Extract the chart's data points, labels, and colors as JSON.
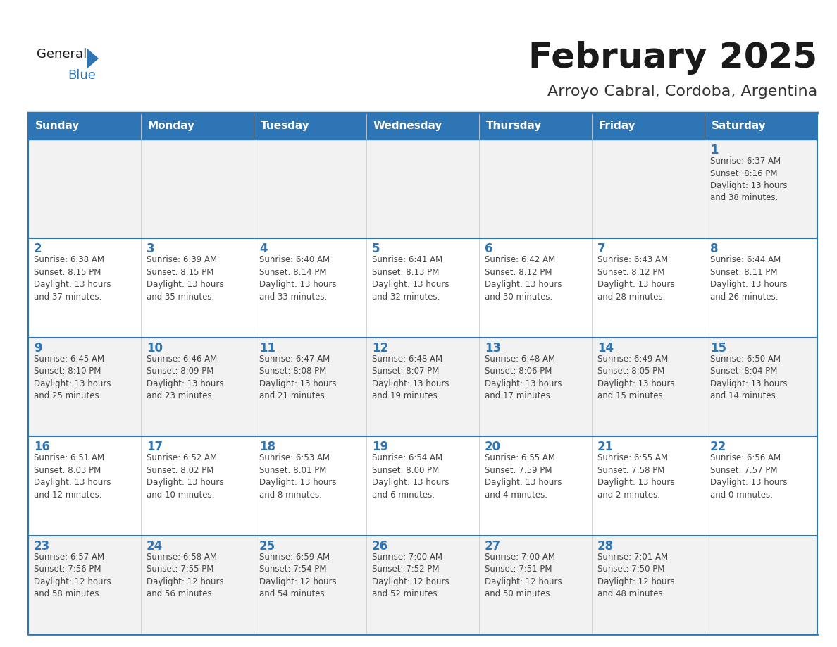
{
  "title": "February 2025",
  "subtitle": "Arroyo Cabral, Cordoba, Argentina",
  "header_bg": "#2E75B6",
  "header_text_color": "#FFFFFF",
  "cell_bg_white": "#FFFFFF",
  "cell_bg_gray": "#F2F2F2",
  "border_color_blue": "#2E75B6",
  "border_color_gray": "#CCCCCC",
  "text_color": "#444444",
  "day_number_color": "#2E75B6",
  "days_of_week": [
    "Sunday",
    "Monday",
    "Tuesday",
    "Wednesday",
    "Thursday",
    "Friday",
    "Saturday"
  ],
  "weeks": [
    [
      {
        "day": "",
        "info": ""
      },
      {
        "day": "",
        "info": ""
      },
      {
        "day": "",
        "info": ""
      },
      {
        "day": "",
        "info": ""
      },
      {
        "day": "",
        "info": ""
      },
      {
        "day": "",
        "info": ""
      },
      {
        "day": "1",
        "info": "Sunrise: 6:37 AM\nSunset: 8:16 PM\nDaylight: 13 hours\nand 38 minutes."
      }
    ],
    [
      {
        "day": "2",
        "info": "Sunrise: 6:38 AM\nSunset: 8:15 PM\nDaylight: 13 hours\nand 37 minutes."
      },
      {
        "day": "3",
        "info": "Sunrise: 6:39 AM\nSunset: 8:15 PM\nDaylight: 13 hours\nand 35 minutes."
      },
      {
        "day": "4",
        "info": "Sunrise: 6:40 AM\nSunset: 8:14 PM\nDaylight: 13 hours\nand 33 minutes."
      },
      {
        "day": "5",
        "info": "Sunrise: 6:41 AM\nSunset: 8:13 PM\nDaylight: 13 hours\nand 32 minutes."
      },
      {
        "day": "6",
        "info": "Sunrise: 6:42 AM\nSunset: 8:12 PM\nDaylight: 13 hours\nand 30 minutes."
      },
      {
        "day": "7",
        "info": "Sunrise: 6:43 AM\nSunset: 8:12 PM\nDaylight: 13 hours\nand 28 minutes."
      },
      {
        "day": "8",
        "info": "Sunrise: 6:44 AM\nSunset: 8:11 PM\nDaylight: 13 hours\nand 26 minutes."
      }
    ],
    [
      {
        "day": "9",
        "info": "Sunrise: 6:45 AM\nSunset: 8:10 PM\nDaylight: 13 hours\nand 25 minutes."
      },
      {
        "day": "10",
        "info": "Sunrise: 6:46 AM\nSunset: 8:09 PM\nDaylight: 13 hours\nand 23 minutes."
      },
      {
        "day": "11",
        "info": "Sunrise: 6:47 AM\nSunset: 8:08 PM\nDaylight: 13 hours\nand 21 minutes."
      },
      {
        "day": "12",
        "info": "Sunrise: 6:48 AM\nSunset: 8:07 PM\nDaylight: 13 hours\nand 19 minutes."
      },
      {
        "day": "13",
        "info": "Sunrise: 6:48 AM\nSunset: 8:06 PM\nDaylight: 13 hours\nand 17 minutes."
      },
      {
        "day": "14",
        "info": "Sunrise: 6:49 AM\nSunset: 8:05 PM\nDaylight: 13 hours\nand 15 minutes."
      },
      {
        "day": "15",
        "info": "Sunrise: 6:50 AM\nSunset: 8:04 PM\nDaylight: 13 hours\nand 14 minutes."
      }
    ],
    [
      {
        "day": "16",
        "info": "Sunrise: 6:51 AM\nSunset: 8:03 PM\nDaylight: 13 hours\nand 12 minutes."
      },
      {
        "day": "17",
        "info": "Sunrise: 6:52 AM\nSunset: 8:02 PM\nDaylight: 13 hours\nand 10 minutes."
      },
      {
        "day": "18",
        "info": "Sunrise: 6:53 AM\nSunset: 8:01 PM\nDaylight: 13 hours\nand 8 minutes."
      },
      {
        "day": "19",
        "info": "Sunrise: 6:54 AM\nSunset: 8:00 PM\nDaylight: 13 hours\nand 6 minutes."
      },
      {
        "day": "20",
        "info": "Sunrise: 6:55 AM\nSunset: 7:59 PM\nDaylight: 13 hours\nand 4 minutes."
      },
      {
        "day": "21",
        "info": "Sunrise: 6:55 AM\nSunset: 7:58 PM\nDaylight: 13 hours\nand 2 minutes."
      },
      {
        "day": "22",
        "info": "Sunrise: 6:56 AM\nSunset: 7:57 PM\nDaylight: 13 hours\nand 0 minutes."
      }
    ],
    [
      {
        "day": "23",
        "info": "Sunrise: 6:57 AM\nSunset: 7:56 PM\nDaylight: 12 hours\nand 58 minutes."
      },
      {
        "day": "24",
        "info": "Sunrise: 6:58 AM\nSunset: 7:55 PM\nDaylight: 12 hours\nand 56 minutes."
      },
      {
        "day": "25",
        "info": "Sunrise: 6:59 AM\nSunset: 7:54 PM\nDaylight: 12 hours\nand 54 minutes."
      },
      {
        "day": "26",
        "info": "Sunrise: 7:00 AM\nSunset: 7:52 PM\nDaylight: 12 hours\nand 52 minutes."
      },
      {
        "day": "27",
        "info": "Sunrise: 7:00 AM\nSunset: 7:51 PM\nDaylight: 12 hours\nand 50 minutes."
      },
      {
        "day": "28",
        "info": "Sunrise: 7:01 AM\nSunset: 7:50 PM\nDaylight: 12 hours\nand 48 minutes."
      },
      {
        "day": "",
        "info": ""
      }
    ]
  ],
  "logo_triangle_color": "#2E75B6",
  "title_fontsize": 36,
  "subtitle_fontsize": 16,
  "header_fontsize": 11,
  "day_num_fontsize": 12,
  "info_fontsize": 8.5
}
